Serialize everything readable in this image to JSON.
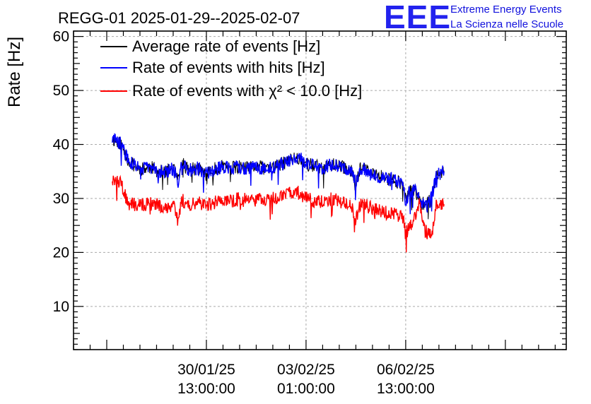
{
  "chart_data": {
    "type": "line",
    "title": "REGG-01 2025-01-29--2025-02-07",
    "ylabel": "Rate [Hz]",
    "xlabel": "",
    "ylim": [
      2,
      61
    ],
    "xlim_hours": [
      -84,
      94
    ],
    "grid": true,
    "legend_position": "top-left",
    "y_ticks": [
      10,
      20,
      30,
      40,
      50,
      60
    ],
    "x_ticks": [
      {
        "date": "30/01/25",
        "time": "13:00:00",
        "hours_from_ref": -36
      },
      {
        "date": "03/02/25",
        "time": "01:00:00",
        "hours_from_ref": 0
      },
      {
        "date": "06/02/25",
        "time": "13:00:00",
        "hours_from_ref": 36
      }
    ],
    "series": [
      {
        "name": "Average rate of events [Hz]",
        "color": "#000000",
        "points": [
          [
            -70,
            41.0
          ],
          [
            -67,
            40.2
          ],
          [
            -64,
            36.8
          ],
          [
            -60,
            35.5
          ],
          [
            -56,
            35.8
          ],
          [
            -54,
            35.2
          ],
          [
            -51,
            34.8
          ],
          [
            -48,
            35.5
          ],
          [
            -46,
            33.0
          ],
          [
            -45,
            36.5
          ],
          [
            -42,
            35.3
          ],
          [
            -39,
            35.6
          ],
          [
            -36,
            34.5
          ],
          [
            -33,
            35.4
          ],
          [
            -30,
            35.9
          ],
          [
            -27,
            35.6
          ],
          [
            -24,
            35.8
          ],
          [
            -21,
            35.5
          ],
          [
            -18,
            35.9
          ],
          [
            -15,
            35.6
          ],
          [
            -12,
            35.7
          ],
          [
            -9,
            36.3
          ],
          [
            -6,
            37.0
          ],
          [
            -4,
            37.6
          ],
          [
            -2,
            37.3
          ],
          [
            0,
            36.5
          ],
          [
            3,
            36.0
          ],
          [
            6,
            35.7
          ],
          [
            9,
            36.3
          ],
          [
            12,
            36.0
          ],
          [
            15,
            35.5
          ],
          [
            17,
            34.7
          ],
          [
            18,
            33.0
          ],
          [
            20,
            36.0
          ],
          [
            22,
            35.0
          ],
          [
            24,
            34.5
          ],
          [
            27,
            34.0
          ],
          [
            30,
            33.6
          ],
          [
            33,
            33.2
          ],
          [
            35,
            32.5
          ],
          [
            36,
            29.5
          ],
          [
            37,
            31.0
          ],
          [
            39,
            31.7
          ],
          [
            41,
            29.6
          ],
          [
            43,
            28.7
          ],
          [
            45,
            29.7
          ],
          [
            46,
            31.6
          ],
          [
            47,
            34.0
          ],
          [
            48,
            34.5
          ],
          [
            50,
            35.0
          ]
        ]
      },
      {
        "name": "Rate of events with hits [Hz]",
        "color": "#0000ff",
        "points": [
          [
            -70,
            41.0
          ],
          [
            -67,
            40.2
          ],
          [
            -64,
            36.8
          ],
          [
            -60,
            35.5
          ],
          [
            -56,
            35.8
          ],
          [
            -54,
            35.2
          ],
          [
            -51,
            34.8
          ],
          [
            -48,
            35.5
          ],
          [
            -46,
            33.0
          ],
          [
            -45,
            36.5
          ],
          [
            -42,
            35.3
          ],
          [
            -39,
            35.6
          ],
          [
            -36,
            34.5
          ],
          [
            -33,
            35.4
          ],
          [
            -30,
            35.9
          ],
          [
            -27,
            35.6
          ],
          [
            -24,
            35.8
          ],
          [
            -21,
            35.5
          ],
          [
            -18,
            35.9
          ],
          [
            -15,
            35.6
          ],
          [
            -12,
            35.7
          ],
          [
            -9,
            36.3
          ],
          [
            -6,
            37.0
          ],
          [
            -4,
            37.6
          ],
          [
            -2,
            37.3
          ],
          [
            0,
            36.5
          ],
          [
            3,
            36.0
          ],
          [
            6,
            35.7
          ],
          [
            9,
            36.3
          ],
          [
            12,
            36.0
          ],
          [
            15,
            35.5
          ],
          [
            17,
            34.7
          ],
          [
            18,
            33.0
          ],
          [
            20,
            36.0
          ],
          [
            22,
            35.0
          ],
          [
            24,
            34.5
          ],
          [
            27,
            34.0
          ],
          [
            30,
            33.6
          ],
          [
            33,
            33.2
          ],
          [
            35,
            32.5
          ],
          [
            36,
            29.5
          ],
          [
            37,
            31.0
          ],
          [
            39,
            31.7
          ],
          [
            41,
            29.6
          ],
          [
            43,
            28.7
          ],
          [
            45,
            29.7
          ],
          [
            46,
            31.6
          ],
          [
            47,
            34.0
          ],
          [
            48,
            34.5
          ],
          [
            50,
            35.0
          ]
        ]
      },
      {
        "name": "Rate of events with χ² < 10.0 [Hz]",
        "color": "#ff0000",
        "points": [
          [
            -70,
            33.8
          ],
          [
            -67,
            32.7
          ],
          [
            -64,
            28.9
          ],
          [
            -60,
            28.9
          ],
          [
            -56,
            29.0
          ],
          [
            -54,
            28.8
          ],
          [
            -51,
            28.5
          ],
          [
            -48,
            28.6
          ],
          [
            -46,
            26.5
          ],
          [
            -45,
            29.7
          ],
          [
            -42,
            29.0
          ],
          [
            -39,
            29.4
          ],
          [
            -36,
            28.7
          ],
          [
            -33,
            29.3
          ],
          [
            -30,
            29.8
          ],
          [
            -27,
            29.6
          ],
          [
            -24,
            29.9
          ],
          [
            -21,
            29.8
          ],
          [
            -18,
            30.1
          ],
          [
            -15,
            29.9
          ],
          [
            -12,
            30.0
          ],
          [
            -9,
            30.5
          ],
          [
            -6,
            31.0
          ],
          [
            -4,
            31.3
          ],
          [
            -2,
            30.9
          ],
          [
            0,
            30.1
          ],
          [
            3,
            29.6
          ],
          [
            6,
            29.4
          ],
          [
            9,
            29.9
          ],
          [
            12,
            29.5
          ],
          [
            15,
            29.2
          ],
          [
            17,
            28.0
          ],
          [
            18,
            26.0
          ],
          [
            20,
            29.4
          ],
          [
            22,
            28.6
          ],
          [
            24,
            28.0
          ],
          [
            27,
            27.6
          ],
          [
            30,
            27.2
          ],
          [
            33,
            27.0
          ],
          [
            35,
            26.6
          ],
          [
            36,
            23.2
          ],
          [
            37,
            24.7
          ],
          [
            39,
            25.8
          ],
          [
            41,
            29.3
          ],
          [
            43,
            24.0
          ],
          [
            45,
            23.3
          ],
          [
            46,
            24.5
          ],
          [
            47,
            28.5
          ],
          [
            48,
            28.9
          ],
          [
            50,
            29.1
          ]
        ]
      }
    ],
    "logo": {
      "mark": "EEE",
      "line1": "Extreme Energy Events",
      "line2": "La Scienza nelle Scuole"
    }
  }
}
